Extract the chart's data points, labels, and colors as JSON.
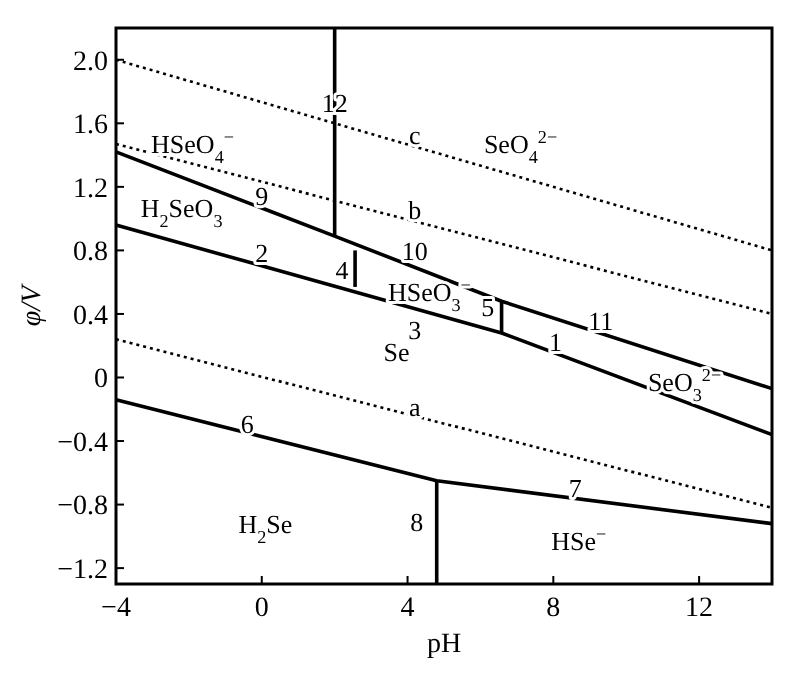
{
  "chart_data": {
    "type": "line",
    "xlabel": "pH",
    "ylabel": "φ/V",
    "xlim": [
      -4,
      14
    ],
    "ylim": [
      -1.3,
      2.2
    ],
    "xticks": [
      {
        "value": -4,
        "label": "−4"
      },
      0,
      4,
      8,
      12
    ],
    "yticks": [
      {
        "value": -1.2,
        "label": "−1.2"
      },
      {
        "value": -0.8,
        "label": "−0.8"
      },
      {
        "value": -0.4,
        "label": "−0.4"
      },
      0,
      0.4,
      0.8,
      1.2,
      1.6,
      {
        "value": 2,
        "label": "2.0"
      }
    ],
    "grid": false,
    "series": [
      {
        "color": "#000000",
        "line_style": "solid",
        "x": [
          -4,
          6.58,
          14
        ],
        "values": [
          0.96,
          0.28,
          -0.36
        ]
      },
      {
        "color": "#000000",
        "line_style": "solid",
        "x": [
          -4,
          2,
          6.58,
          14
        ],
        "values": [
          1.42,
          0.89,
          0.48,
          -0.07
        ]
      },
      {
        "color": "#000000",
        "line_style": "solid",
        "x": [
          2,
          2
        ],
        "values": [
          0.89,
          2.2
        ]
      },
      {
        "color": "#000000",
        "line_style": "solid",
        "x": [
          2.56,
          2.56
        ],
        "values": [
          0.8,
          0.57
        ]
      },
      {
        "color": "#000000",
        "line_style": "solid",
        "x": [
          6.58,
          6.58
        ],
        "values": [
          0.48,
          0.28
        ]
      },
      {
        "color": "#000000",
        "line_style": "solid",
        "x": [
          -4,
          4.8,
          14
        ],
        "values": [
          -0.14,
          -0.65,
          -0.92
        ]
      },
      {
        "color": "#000000",
        "line_style": "solid",
        "x": [
          4.8,
          4.8
        ],
        "values": [
          -0.65,
          -1.3
        ]
      },
      {
        "color": "#000000",
        "line_style": "dotted",
        "x": [
          -4,
          14
        ],
        "values": [
          0.24,
          -0.82
        ]
      },
      {
        "color": "#000000",
        "line_style": "dotted",
        "x": [
          -4,
          14
        ],
        "values": [
          1.47,
          0.4
        ]
      },
      {
        "color": "#000000",
        "line_style": "dotted",
        "x": [
          -4,
          14
        ],
        "values": [
          2.0,
          0.8
        ]
      }
    ],
    "annotations": [
      {
        "text": "1",
        "x": 8.06,
        "y": 0.15
      },
      {
        "text": "2",
        "x": 0,
        "y": 0.71
      },
      "3",
      "4",
      {
        "text": "5",
        "x": 6.2,
        "y": 0.37
      },
      {
        "text": "6",
        "x": -0.4,
        "y": -0.37
      },
      {
        "text": "7",
        "x": 8.6,
        "y": -0.77
      },
      "8",
      {
        "text": "9",
        "x": 0,
        "y": 1.07
      },
      "10",
      {
        "text": "11",
        "x": 9.3,
        "y": 0.28
      },
      {
        "text": "12",
        "x": 2,
        "y": 1.65
      },
      {
        "text": "a",
        "x": 4.2,
        "y": -0.26
      },
      {
        "text": "b",
        "x": 4.2,
        "y": 0.98
      },
      {
        "text": "c",
        "x": 4.2,
        "y": 1.45
      },
      "HSeO$_{4}$$^{−}$",
      "SeO$_{4}$$^{2−}$",
      "H$_{2}$SeO$_{3}$",
      "HSeO$_{3}$$^{−}$",
      "Se",
      "SeO$_{3}$$^{2−}$",
      "H$_{2}$Se",
      "HSe$^{−}$"
    ]
  }
}
